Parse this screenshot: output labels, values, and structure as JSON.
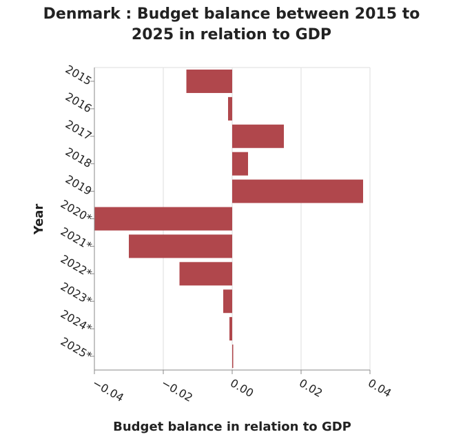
{
  "chart_data": {
    "type": "bar",
    "orientation": "horizontal",
    "title_line1": "Denmark : Budget balance between 2015 to",
    "title_line2": "2025 in relation to GDP",
    "xlabel": "Budget balance in relation to GDP",
    "ylabel": "Year",
    "xlim": [
      -0.04,
      0.04
    ],
    "xticks": [
      -0.04,
      -0.02,
      0.0,
      0.02,
      0.04
    ],
    "xtick_labels": [
      "−0.04",
      "−0.02",
      "0.00",
      "0.02",
      "0.04"
    ],
    "grid": true,
    "bar_color": "#b0474c",
    "categories": [
      "2015",
      "2016",
      "2017",
      "2018",
      "2019",
      "2020*",
      "2021*",
      "2022*",
      "2023*",
      "2024*",
      "2025*"
    ],
    "values": [
      -0.0133,
      -0.0012,
      0.015,
      0.0046,
      0.038,
      -0.04,
      -0.03,
      -0.0153,
      -0.0026,
      -0.0008,
      0.0003
    ]
  }
}
